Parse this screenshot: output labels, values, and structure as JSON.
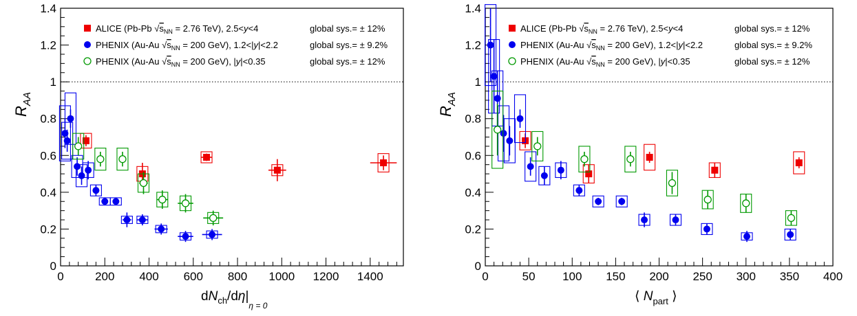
{
  "chart_data": [
    {
      "type": "scatter",
      "xlabel_parts": {
        "d1": "d",
        "N": "N",
        "ch": "ch",
        "d2": "/d",
        "eta": "η",
        "bar": "|",
        "sub": "η = 0"
      },
      "ylabel": {
        "R": "R",
        "sub": "AA"
      },
      "xlim": [
        0,
        1550
      ],
      "ylim": [
        0,
        1.4
      ],
      "x_ticks": [
        "0",
        "200",
        "400",
        "600",
        "800",
        "1000",
        "1200",
        "1400"
      ],
      "x_tick_values": [
        0,
        200,
        400,
        600,
        800,
        1000,
        1200,
        1400
      ],
      "y_ticks": [
        "0",
        "0.2",
        "0.4",
        "0.6",
        "0.8",
        "1",
        "1.2",
        "1.4"
      ],
      "y_tick_values": [
        0,
        0.2,
        0.4,
        0.6,
        0.8,
        1.0,
        1.2,
        1.4
      ],
      "reference_line": 1.0,
      "legend": [
        {
          "pre": "ALICE (Pb-Pb ",
          "sub": "NN",
          "post": " = 2.76 TeV), 2.5<",
          "y": "y",
          "post2": "<4",
          "sys": "global sys.= ± 12%",
          "color": "#ee0000",
          "marker": "square-filled"
        },
        {
          "pre": "PHENIX (Au-Au ",
          "sub": "NN",
          "post": " = 200 GeV), 1.2<|",
          "y": "y",
          "post2": "|<2.2",
          "sys": "global sys.= ± 9.2%",
          "color": "#0000ee",
          "marker": "circle-filled"
        },
        {
          "pre": "PHENIX (Au-Au ",
          "sub": "NN",
          "post": " = 200 GeV), |",
          "y": "y",
          "post2": "|<0.35",
          "sys": "global sys.= ± 12%",
          "color": "#009900",
          "marker": "circle-open"
        }
      ],
      "series": [
        {
          "name": "ALICE",
          "color": "#ee0000",
          "marker": "square-filled",
          "points": [
            {
              "x": 115,
              "y": 0.68,
              "xerr": 8,
              "stat": 0.03,
              "sys": 0.04
            },
            {
              "x": 370,
              "y": 0.5,
              "xerr": 15,
              "stat": 0.06,
              "sys": 0.04
            },
            {
              "x": 660,
              "y": 0.59,
              "xerr": 25,
              "stat": 0.02,
              "sys": 0.03
            },
            {
              "x": 980,
              "y": 0.52,
              "xerr": 40,
              "stat": 0.06,
              "sys": 0.03
            },
            {
              "x": 1460,
              "y": 0.56,
              "xerr": 60,
              "stat": 0.04,
              "sys": 0.05
            }
          ]
        },
        {
          "name": "PHENIX 1.2<|y|<2.2",
          "color": "#0000ee",
          "marker": "circle-filled",
          "points": [
            {
              "x": 20,
              "y": 0.72,
              "xerr": 5,
              "stat": 0.08,
              "sys": 0.15
            },
            {
              "x": 30,
              "y": 0.68,
              "xerr": 5,
              "stat": 0.06,
              "sys": 0.1
            },
            {
              "x": 45,
              "y": 0.8,
              "xerr": 6,
              "stat": 0.05,
              "sys": 0.14
            },
            {
              "x": 75,
              "y": 0.54,
              "xerr": 8,
              "stat": 0.05,
              "sys": 0.06
            },
            {
              "x": 95,
              "y": 0.49,
              "xerr": 9,
              "stat": 0.05,
              "sys": 0.06
            },
            {
              "x": 125,
              "y": 0.52,
              "xerr": 10,
              "stat": 0.05,
              "sys": 0.04
            },
            {
              "x": 160,
              "y": 0.41,
              "xerr": 12,
              "stat": 0.03,
              "sys": 0.03
            },
            {
              "x": 200,
              "y": 0.35,
              "xerr": 15,
              "stat": 0.02,
              "sys": 0.02
            },
            {
              "x": 250,
              "y": 0.35,
              "xerr": 15,
              "stat": 0.02,
              "sys": 0.02
            },
            {
              "x": 300,
              "y": 0.25,
              "xerr": 20,
              "stat": 0.04,
              "sys": 0.02
            },
            {
              "x": 370,
              "y": 0.25,
              "xerr": 25,
              "stat": 0.03,
              "sys": 0.02
            },
            {
              "x": 455,
              "y": 0.2,
              "xerr": 30,
              "stat": 0.03,
              "sys": 0.02
            },
            {
              "x": 565,
              "y": 0.16,
              "xerr": 35,
              "stat": 0.03,
              "sys": 0.02
            },
            {
              "x": 685,
              "y": 0.17,
              "xerr": 45,
              "stat": 0.03,
              "sys": 0.02
            }
          ]
        },
        {
          "name": "PHENIX |y|<0.35",
          "color": "#009900",
          "marker": "circle-open",
          "points": [
            {
              "x": 80,
              "y": 0.65,
              "xerr": 8,
              "stat": 0.05,
              "sys": 0.07
            },
            {
              "x": 180,
              "y": 0.58,
              "xerr": 12,
              "stat": 0.04,
              "sys": 0.06
            },
            {
              "x": 280,
              "y": 0.58,
              "xerr": 15,
              "stat": 0.04,
              "sys": 0.06
            },
            {
              "x": 375,
              "y": 0.45,
              "xerr": 20,
              "stat": 0.06,
              "sys": 0.05
            },
            {
              "x": 460,
              "y": 0.36,
              "xerr": 25,
              "stat": 0.05,
              "sys": 0.04
            },
            {
              "x": 565,
              "y": 0.34,
              "xerr": 35,
              "stat": 0.05,
              "sys": 0.04
            },
            {
              "x": 690,
              "y": 0.26,
              "xerr": 45,
              "stat": 0.04,
              "sys": 0.03
            }
          ]
        }
      ]
    },
    {
      "type": "scatter",
      "xlabel_parts": {
        "open": "⟨",
        "N": "N",
        "sub": "part",
        "close": "⟩"
      },
      "ylabel": {
        "R": "R",
        "sub": "AA"
      },
      "xlim": [
        0,
        400
      ],
      "ylim": [
        0,
        1.4
      ],
      "x_ticks": [
        "0",
        "50",
        "100",
        "150",
        "200",
        "250",
        "300",
        "350",
        "400"
      ],
      "x_tick_values": [
        0,
        50,
        100,
        150,
        200,
        250,
        300,
        350,
        400
      ],
      "y_ticks": [
        "0",
        "0.2",
        "0.4",
        "0.6",
        "0.8",
        "1",
        "1.2",
        "1.4"
      ],
      "y_tick_values": [
        0,
        0.2,
        0.4,
        0.6,
        0.8,
        1.0,
        1.2,
        1.4
      ],
      "reference_line": 1.0,
      "legend": [
        {
          "pre": "ALICE (Pb-Pb ",
          "sub": "NN",
          "post": " = 2.76 TeV), 2.5<",
          "y": "y",
          "post2": "<4",
          "sys": "global sys.= ± 12%",
          "color": "#ee0000",
          "marker": "square-filled"
        },
        {
          "pre": "PHENIX (Au-Au ",
          "sub": "NN",
          "post": " = 200 GeV), 1.2<|",
          "y": "y",
          "post2": "|<2.2",
          "sys": "global sys.= ± 9.2%",
          "color": "#0000ee",
          "marker": "circle-filled"
        },
        {
          "pre": "PHENIX (Au-Au ",
          "sub": "NN",
          "post": " = 200 GeV), |",
          "y": "y",
          "post2": "|<0.35",
          "sys": "global sys.= ± 12%",
          "color": "#009900",
          "marker": "circle-open"
        }
      ],
      "series": [
        {
          "name": "ALICE",
          "color": "#ee0000",
          "marker": "square-filled",
          "points": [
            {
              "x": 46,
              "y": 0.68,
              "stat": 0.04,
              "sys": 0.05,
              "xerr": 2
            },
            {
              "x": 119,
              "y": 0.5,
              "stat": 0.05,
              "sys": 0.05,
              "xerr": 2
            },
            {
              "x": 189,
              "y": 0.59,
              "stat": 0.03,
              "sys": 0.07,
              "xerr": 3
            },
            {
              "x": 264,
              "y": 0.52,
              "stat": 0.04,
              "sys": 0.04,
              "xerr": 3
            },
            {
              "x": 361,
              "y": 0.56,
              "stat": 0.03,
              "sys": 0.06,
              "xerr": 3
            }
          ]
        },
        {
          "name": "PHENIX 1.2<|y|<2.2",
          "color": "#0000ee",
          "marker": "circle-filled",
          "points": [
            {
              "x": 6,
              "y": 1.2,
              "stat": 0.2,
              "sys": 0.22,
              "xerr": 1
            },
            {
              "x": 10,
              "y": 1.03,
              "stat": 0.2,
              "sys": 0.2,
              "xerr": 1
            },
            {
              "x": 14,
              "y": 0.91,
              "stat": 0.15,
              "sys": 0.15,
              "xerr": 1
            },
            {
              "x": 21,
              "y": 0.72,
              "stat": 0.1,
              "sys": 0.15,
              "xerr": 1
            },
            {
              "x": 28,
              "y": 0.68,
              "stat": 0.08,
              "sys": 0.12,
              "xerr": 1
            },
            {
              "x": 40,
              "y": 0.8,
              "stat": 0.05,
              "sys": 0.13,
              "xerr": 1
            },
            {
              "x": 52,
              "y": 0.54,
              "stat": 0.05,
              "sys": 0.08,
              "xerr": 2
            },
            {
              "x": 68,
              "y": 0.49,
              "stat": 0.05,
              "sys": 0.05,
              "xerr": 2
            },
            {
              "x": 87,
              "y": 0.52,
              "stat": 0.05,
              "sys": 0.04,
              "xerr": 2
            },
            {
              "x": 108,
              "y": 0.41,
              "stat": 0.03,
              "sys": 0.03,
              "xerr": 3
            },
            {
              "x": 130,
              "y": 0.35,
              "stat": 0.02,
              "sys": 0.03,
              "xerr": 3
            },
            {
              "x": 157,
              "y": 0.35,
              "stat": 0.02,
              "sys": 0.03,
              "xerr": 3
            },
            {
              "x": 183,
              "y": 0.25,
              "stat": 0.04,
              "sys": 0.03,
              "xerr": 3
            },
            {
              "x": 219,
              "y": 0.25,
              "stat": 0.03,
              "sys": 0.03,
              "xerr": 3
            },
            {
              "x": 255,
              "y": 0.2,
              "stat": 0.03,
              "sys": 0.03,
              "xerr": 3
            },
            {
              "x": 301,
              "y": 0.16,
              "stat": 0.03,
              "sys": 0.02,
              "xerr": 3
            },
            {
              "x": 351,
              "y": 0.17,
              "stat": 0.03,
              "sys": 0.03,
              "xerr": 3
            }
          ]
        },
        {
          "name": "PHENIX |y|<0.35",
          "color": "#009900",
          "marker": "circle-open",
          "points": [
            {
              "x": 14,
              "y": 0.74,
              "stat": 0.14,
              "sys": 0.21,
              "xerr": 1
            },
            {
              "x": 60,
              "y": 0.65,
              "stat": 0.05,
              "sys": 0.08,
              "xerr": 2
            },
            {
              "x": 114,
              "y": 0.58,
              "stat": 0.04,
              "sys": 0.07,
              "xerr": 2
            },
            {
              "x": 167,
              "y": 0.58,
              "stat": 0.04,
              "sys": 0.07,
              "xerr": 3
            },
            {
              "x": 215,
              "y": 0.45,
              "stat": 0.06,
              "sys": 0.07,
              "xerr": 3
            },
            {
              "x": 256,
              "y": 0.36,
              "stat": 0.05,
              "sys": 0.05,
              "xerr": 3
            },
            {
              "x": 300,
              "y": 0.34,
              "stat": 0.05,
              "sys": 0.05,
              "xerr": 3
            },
            {
              "x": 352,
              "y": 0.26,
              "stat": 0.04,
              "sys": 0.04,
              "xerr": 3
            }
          ]
        }
      ]
    }
  ]
}
